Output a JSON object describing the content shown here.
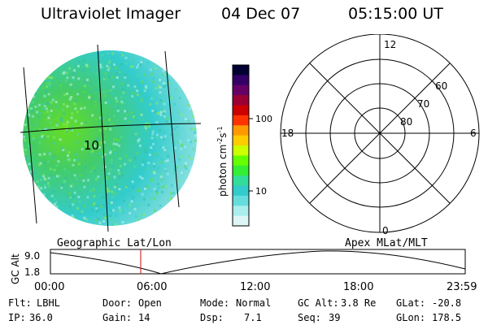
{
  "header": {
    "instrument": "Ultraviolet Imager",
    "date": "04 Dec 07",
    "time": "05:15:00 UT"
  },
  "globe": {
    "grid_label": "10"
  },
  "colorbar": {
    "unit": "photon cm",
    "unit_exp1": "-2",
    "unit_mid": "s",
    "unit_exp2": "-1",
    "ticks": [
      "100",
      "10"
    ],
    "colors": [
      "#000033",
      "#330066",
      "#660066",
      "#990033",
      "#cc0000",
      "#ff3300",
      "#ff9900",
      "#ffcc00",
      "#ccff00",
      "#66ff00",
      "#33ee33",
      "#33dd99",
      "#33cccc",
      "#66dddd",
      "#aaeeee",
      "#ddf5f5"
    ]
  },
  "polar": {
    "labels": {
      "top": "12",
      "left": "18",
      "right": "6",
      "bottom": "0"
    },
    "rings": [
      "60",
      "70",
      "80"
    ]
  },
  "altitude_plot": {
    "left_label": "Geographic Lat/Lon",
    "right_label": "Apex MLat/MLT",
    "axis_title": "GC Alt",
    "y_ticks": [
      "9.0",
      "1.8"
    ],
    "x_ticks": [
      "00:00",
      "06:00",
      "12:00",
      "18:00",
      "23:59"
    ]
  },
  "status": {
    "flt_label": "Flt:",
    "flt_value": "LBHL",
    "door_label": "Door:",
    "door_value": "Open",
    "mode_label": "Mode:",
    "mode_value": "Normal",
    "gcalt_label": "GC Alt:",
    "gcalt_value": "3.8 Re",
    "glat_label": "GLat:",
    "glat_value": "-20.8",
    "ip_label": "IP:",
    "ip_value": "36.0",
    "gain_label": "Gain:",
    "gain_value": "14",
    "dsp_label": "Dsp:",
    "dsp_value": "7.1",
    "seq_label": "Seq:",
    "seq_value": "39",
    "glon_label": "GLon:",
    "glon_value": "178.5"
  }
}
